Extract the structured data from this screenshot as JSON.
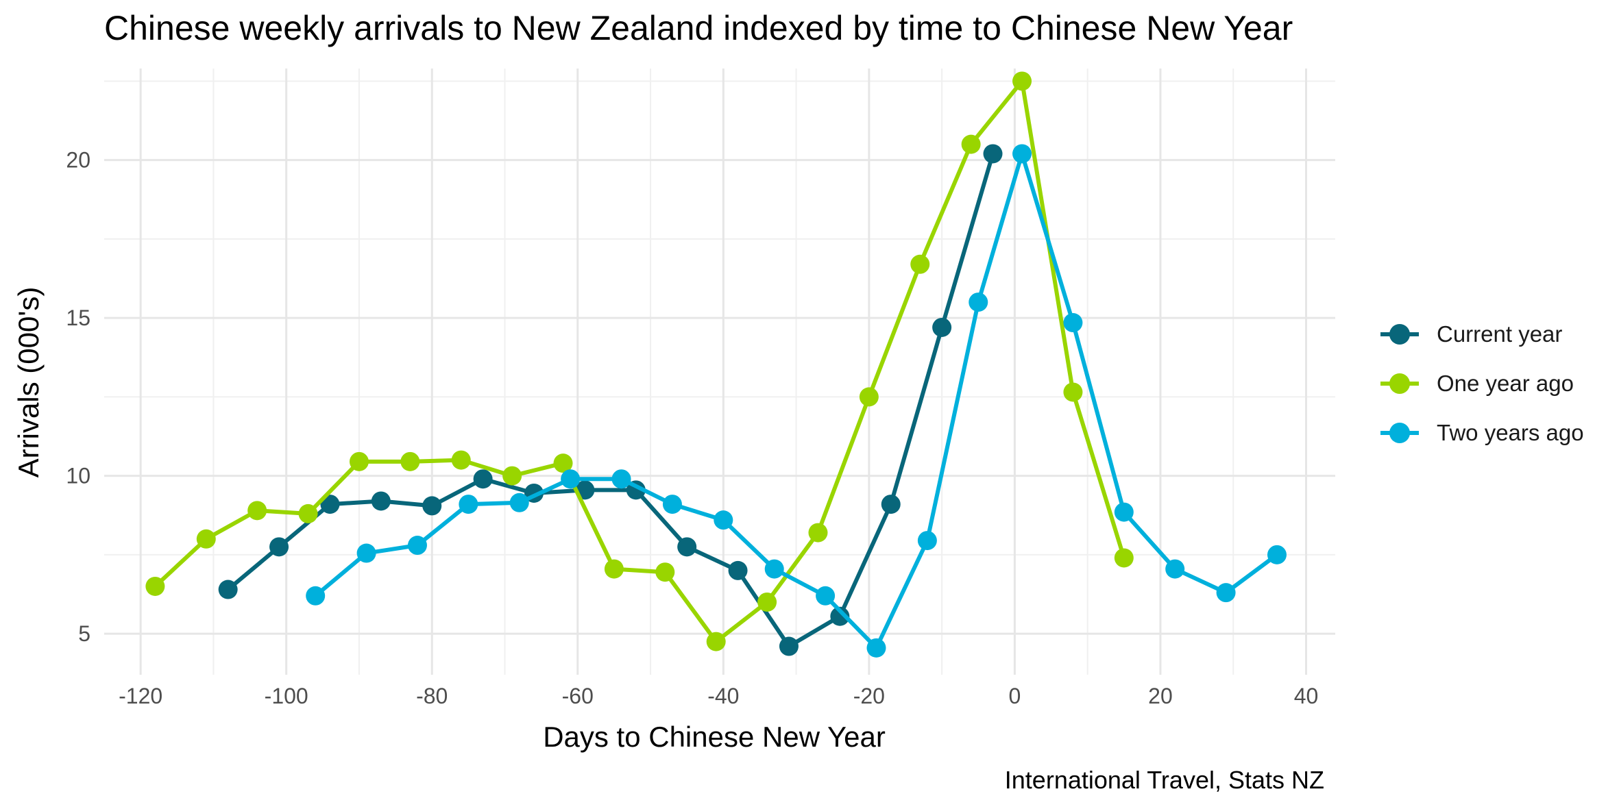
{
  "chart_data": {
    "type": "line",
    "title": "Chinese weekly arrivals to New Zealand indexed by time to Chinese New Year",
    "xlabel": "Days to Chinese New Year",
    "ylabel": "Arrivals (000's)",
    "caption": "International Travel, Stats NZ",
    "xlim": [
      -125,
      44
    ],
    "ylim": [
      3.7,
      22.9
    ],
    "x_ticks": [
      -120,
      -100,
      -80,
      -60,
      -40,
      -20,
      0,
      20,
      40
    ],
    "x_tick_labels": [
      "-120",
      "-100",
      "-80",
      "-60",
      "-40",
      "-20",
      "0",
      "20",
      "40"
    ],
    "y_ticks": [
      5,
      10,
      15,
      20
    ],
    "y_tick_labels": [
      "5",
      "10",
      "15",
      "20"
    ],
    "grid": true,
    "legend_position": "right",
    "series": [
      {
        "name": "Current year",
        "color": "#08667A",
        "points": [
          [
            -108,
            6.4
          ],
          [
            -101,
            7.75
          ],
          [
            -94,
            9.1
          ],
          [
            -87,
            9.2
          ],
          [
            -80,
            9.05
          ],
          [
            -73,
            9.9
          ],
          [
            -66,
            9.45
          ],
          [
            -59,
            9.55
          ],
          [
            -52,
            9.55
          ],
          [
            -45,
            7.75
          ],
          [
            -38,
            7.0
          ],
          [
            -31,
            4.6
          ],
          [
            -24,
            5.55
          ],
          [
            -17,
            9.1
          ],
          [
            -10,
            14.7
          ],
          [
            -3,
            20.2
          ]
        ]
      },
      {
        "name": "One year ago",
        "color": "#99D500",
        "points": [
          [
            -118,
            6.5
          ],
          [
            -111,
            8.0
          ],
          [
            -104,
            8.9
          ],
          [
            -97,
            8.8
          ],
          [
            -90,
            10.45
          ],
          [
            -83,
            10.45
          ],
          [
            -76,
            10.5
          ],
          [
            -69,
            10.0
          ],
          [
            -62,
            10.4
          ],
          [
            -55,
            7.05
          ],
          [
            -48,
            6.95
          ],
          [
            -41,
            4.75
          ],
          [
            -34,
            6.0
          ],
          [
            -27,
            8.2
          ],
          [
            -20,
            12.5
          ],
          [
            -13,
            16.7
          ],
          [
            -6,
            20.5
          ],
          [
            1,
            22.5
          ],
          [
            8,
            12.65
          ],
          [
            15,
            7.4
          ]
        ]
      },
      {
        "name": "Two years ago",
        "color": "#00B0DC",
        "points": [
          [
            -96,
            6.2
          ],
          [
            -89,
            7.55
          ],
          [
            -82,
            7.8
          ],
          [
            -75,
            9.1
          ],
          [
            -68,
            9.15
          ],
          [
            -61,
            9.9
          ],
          [
            -54,
            9.9
          ],
          [
            -47,
            9.1
          ],
          [
            -40,
            8.6
          ],
          [
            -33,
            7.05
          ],
          [
            -26,
            6.2
          ],
          [
            -19,
            4.55
          ],
          [
            -12,
            7.95
          ],
          [
            -5,
            15.5
          ],
          [
            1,
            20.2
          ],
          [
            8,
            14.85
          ],
          [
            15,
            8.85
          ],
          [
            22,
            7.05
          ],
          [
            29,
            6.3
          ],
          [
            36,
            7.5
          ]
        ]
      }
    ]
  }
}
